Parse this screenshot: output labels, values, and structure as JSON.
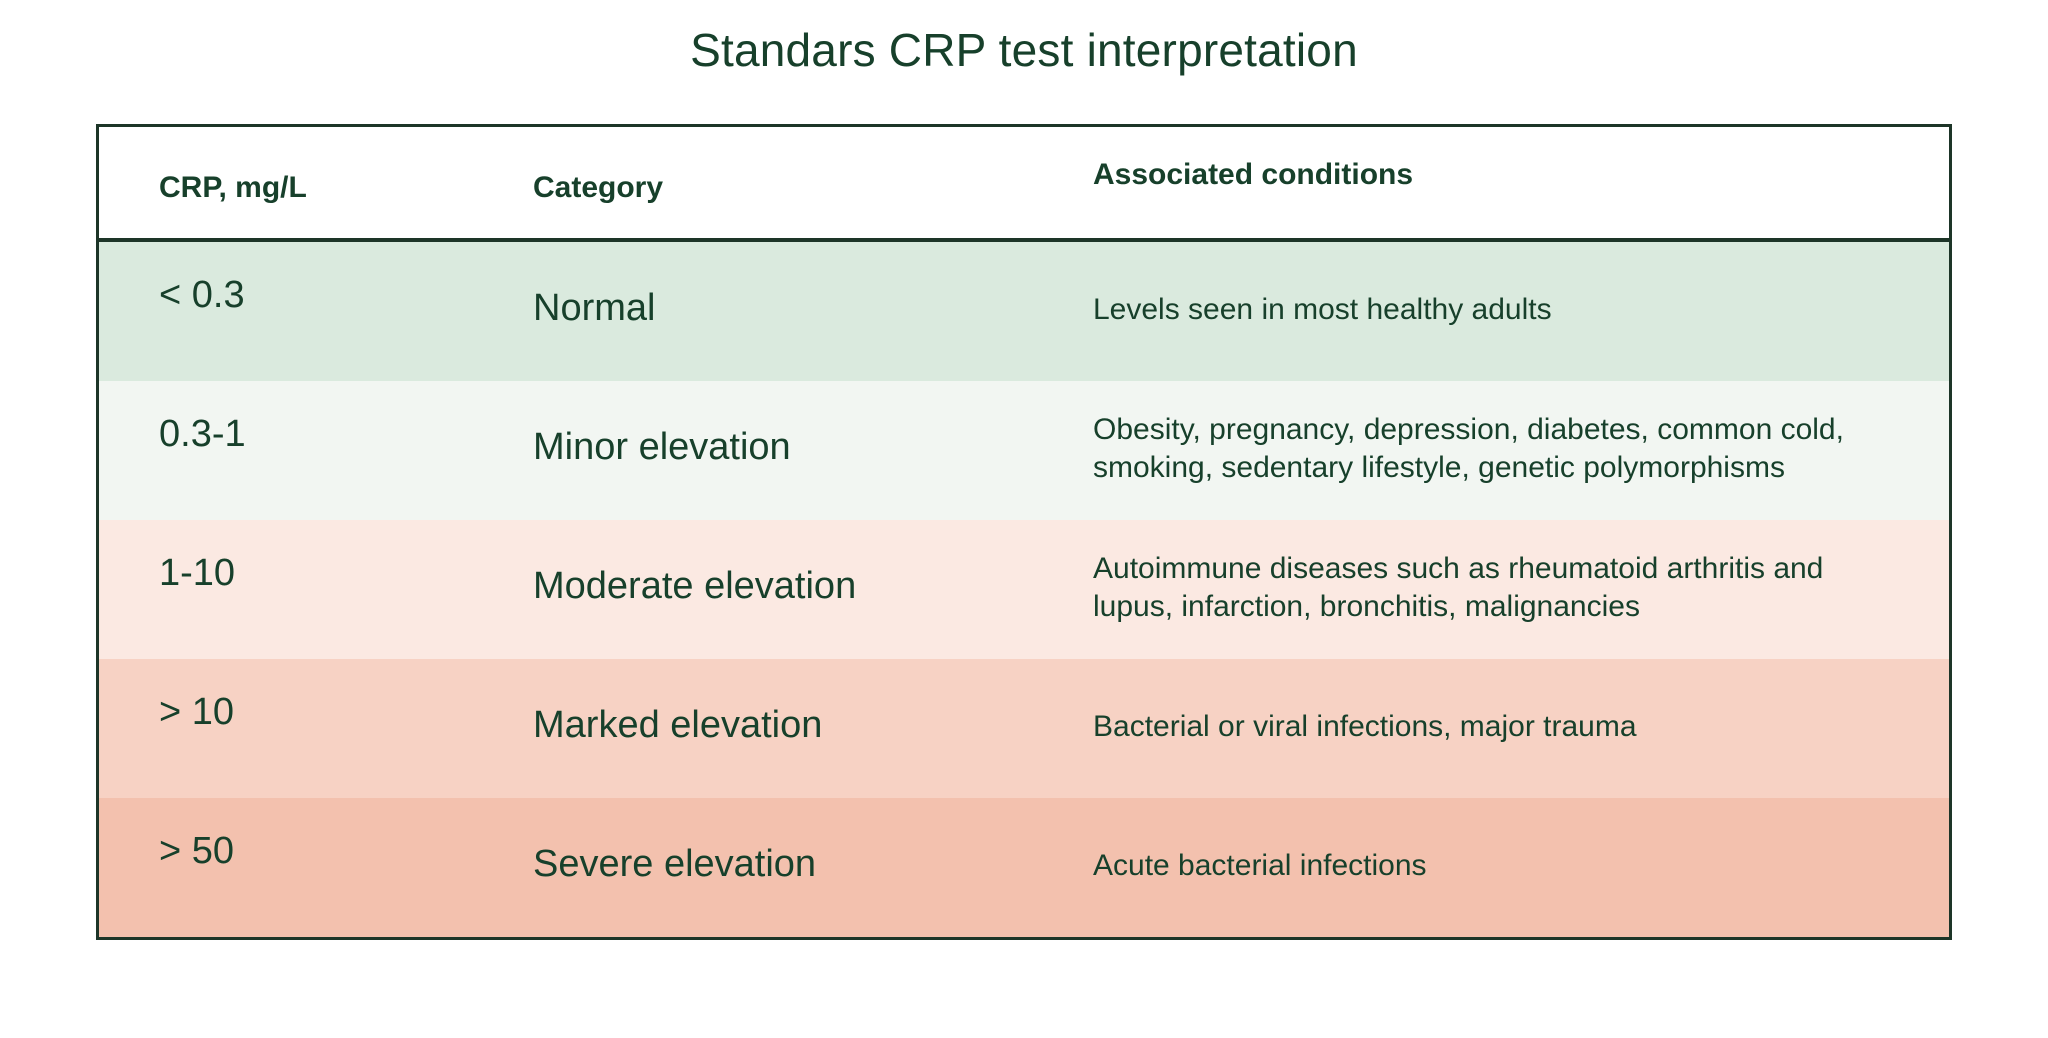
{
  "title": "Standars CRP test interpretation",
  "colors": {
    "text": "#17402b",
    "border": "#1d3528",
    "header_bg": "#ffffff",
    "row_normal_bg": "#daeade",
    "row_minor_bg": "#f2f6f2",
    "row_moderate_bg": "#fbe9e2",
    "row_marked_bg": "#f7d2c4",
    "row_severe_bg": "#f3c1ae"
  },
  "table": {
    "columns": [
      "CRP, mg/L",
      "Category",
      "Associated conditions"
    ],
    "rows": [
      {
        "crp": "< 0.3",
        "category": "Normal",
        "conditions": "Levels seen in most healthy adults",
        "bg": "#daeade"
      },
      {
        "crp": "0.3-1",
        "category": "Minor elevation",
        "conditions": "Obesity, pregnancy, depression, diabetes, common cold, smoking, sedentary lifestyle, genetic polymorphisms",
        "bg": "#f2f6f2"
      },
      {
        "crp": "1-10",
        "category": "Moderate elevation",
        "conditions": "Autoimmune diseases such as rheumatoid arthritis and lupus, infarction, bronchitis, malignancies",
        "bg": "#fbe9e2"
      },
      {
        "crp": "> 10",
        "category": "Marked elevation",
        "conditions": "Bacterial or viral infections, major trauma",
        "bg": "#f7d2c4"
      },
      {
        "crp": "> 50",
        "category": "Severe elevation",
        "conditions": "Acute bacterial infections",
        "bg": "#f3c1ae"
      }
    ]
  },
  "chart_data": {
    "type": "table",
    "title": "Standars CRP test interpretation",
    "columns": [
      "CRP, mg/L",
      "Category",
      "Associated conditions"
    ],
    "rows": [
      [
        "< 0.3",
        "Normal",
        "Levels seen in most healthy adults"
      ],
      [
        "0.3-1",
        "Minor elevation",
        "Obesity, pregnancy, depression, diabetes, common cold, smoking, sedentary lifestyle, genetic polymorphisms"
      ],
      [
        "1-10",
        "Moderate elevation",
        "Autoimmune diseases such as rheumatoid arthritis and lupus, infarction, bronchitis, malignancies"
      ],
      [
        "> 10",
        "Marked elevation",
        "Bacterial or viral infections, major trauma"
      ],
      [
        "> 50",
        "Severe elevation",
        "Acute bacterial infections"
      ]
    ],
    "row_colors": [
      "#daeade",
      "#f2f6f2",
      "#fbe9e2",
      "#f7d2c4",
      "#f3c1ae"
    ],
    "legend_position": "none",
    "grid": false
  }
}
